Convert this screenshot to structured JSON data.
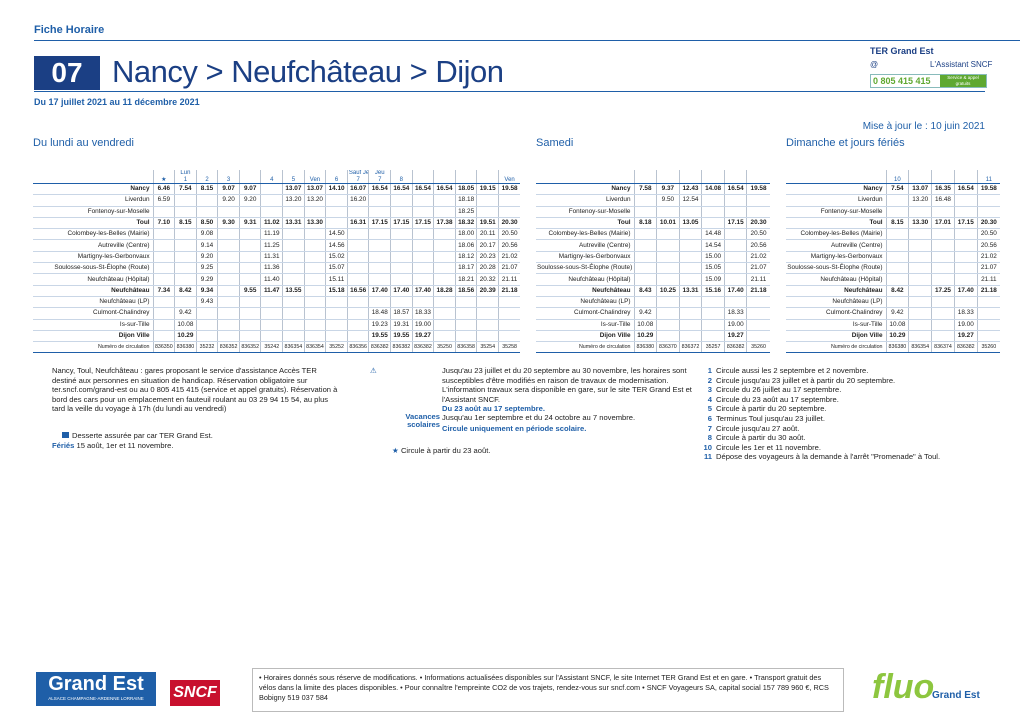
{
  "header": {
    "kicker": "Fiche Horaire",
    "line": "07",
    "title": "Nancy > Neufchâteau > Dijon",
    "validity": "Du 17 juillet 2021 au 11 décembre 2021",
    "brand": "TER Grand Est",
    "at": "@",
    "assistant": "L'Assistant SNCF",
    "phone": "0 805 415 415",
    "phone_note": "Service & appel gratuits",
    "updated": "Mise à jour le : 10 juin 2021"
  },
  "stations": [
    {
      "name": "Nancy",
      "major": true
    },
    {
      "name": "Liverdun",
      "major": false
    },
    {
      "name": "Fontenoy-sur-Moselle",
      "major": false
    },
    {
      "name": "Toul",
      "major": true
    },
    {
      "name": "Colombey-les-Belles (Mairie)",
      "major": false
    },
    {
      "name": "Autreville (Centre)",
      "major": false
    },
    {
      "name": "Martigny-les-Gerbonvaux",
      "major": false
    },
    {
      "name": "Soulosse-sous-St-Élophe (Route)",
      "major": false
    },
    {
      "name": "Neufchâteau (Hôpital)",
      "major": false
    },
    {
      "name": "Neufchâteau",
      "major": true
    },
    {
      "name": "Neufchâteau (LP)",
      "major": false
    },
    {
      "name": "Culmont-Chalindrey",
      "major": false
    },
    {
      "name": "Is-sur-Tille",
      "major": false
    },
    {
      "name": "Dijon Ville",
      "major": true
    }
  ],
  "weekday": {
    "title": "Du lundi au vendredi",
    "days": [
      null,
      "Lun",
      null,
      null,
      null,
      null,
      null,
      "Ven",
      null,
      "Sauf Jeu",
      "Jeu",
      null,
      null,
      null,
      null,
      null,
      "Ven"
    ],
    "refs": [
      "★",
      "1",
      "2",
      "3",
      null,
      "4",
      "5",
      null,
      "6",
      "7",
      "7",
      "8",
      null,
      null,
      null,
      null,
      null
    ],
    "number_label": "Numéro de circulation",
    "trains": [
      "836350",
      "836380",
      "35232",
      "836352",
      "836352",
      "35242",
      "836354",
      "836354",
      "35252",
      "836356",
      "836382",
      "836382",
      "836382",
      "35250",
      "836358",
      "35254",
      "35258"
    ],
    "times": [
      [
        "6.46",
        "7.54",
        "8.15",
        "9.07",
        "9.07",
        null,
        "13.07",
        "13.07",
        "14.10",
        "16.07",
        "16.54",
        "16.54",
        "16.54",
        "16.54",
        "18.05",
        "19.15",
        "19.58"
      ],
      [
        "6.59",
        null,
        null,
        "9.20",
        "9.20",
        null,
        "13.20",
        "13.20",
        null,
        "16.20",
        null,
        null,
        null,
        null,
        "18.18",
        null,
        null
      ],
      [
        null,
        null,
        null,
        null,
        null,
        null,
        null,
        null,
        null,
        null,
        null,
        null,
        null,
        null,
        "18.25",
        null,
        null
      ],
      [
        "7.10",
        "8.15",
        "8.50",
        "9.30",
        "9.31",
        "11.02",
        "13.31",
        "13.30",
        null,
        "16.31",
        "17.15",
        "17.15",
        "17.15",
        "17.38",
        "18.32",
        "19.51",
        "20.30"
      ],
      [
        null,
        null,
        "9.08",
        null,
        null,
        "11.19",
        null,
        null,
        "14.50",
        null,
        null,
        null,
        null,
        null,
        "18.00",
        "20.11",
        "20.50"
      ],
      [
        null,
        null,
        "9.14",
        null,
        null,
        "11.25",
        null,
        null,
        "14.56",
        null,
        null,
        null,
        null,
        null,
        "18.06",
        "20.17",
        "20.56"
      ],
      [
        null,
        null,
        "9.20",
        null,
        null,
        "11.31",
        null,
        null,
        "15.02",
        null,
        null,
        null,
        null,
        null,
        "18.12",
        "20.23",
        "21.02"
      ],
      [
        null,
        null,
        "9.25",
        null,
        null,
        "11.36",
        null,
        null,
        "15.07",
        null,
        null,
        null,
        null,
        null,
        "18.17",
        "20.28",
        "21.07"
      ],
      [
        null,
        null,
        "9.29",
        null,
        null,
        "11.40",
        null,
        null,
        "15.11",
        null,
        null,
        null,
        null,
        null,
        "18.21",
        "20.32",
        "21.11"
      ],
      [
        "7.34",
        "8.42",
        "9.34",
        null,
        "9.55",
        "11.47",
        "13.55",
        null,
        "15.18",
        "16.56",
        "17.40",
        "17.40",
        "17.40",
        "18.28",
        "18.56",
        "20.39",
        "21.18"
      ],
      [
        null,
        null,
        "9.43",
        null,
        null,
        null,
        null,
        null,
        null,
        null,
        null,
        null,
        null,
        null,
        null,
        null,
        null
      ],
      [
        null,
        "9.42",
        null,
        null,
        null,
        null,
        null,
        null,
        null,
        null,
        "18.48",
        "18.57",
        "18.33",
        null,
        null,
        null,
        null
      ],
      [
        null,
        "10.08",
        null,
        null,
        null,
        null,
        null,
        null,
        null,
        null,
        "19.23",
        "19.31",
        "19.00",
        null,
        null,
        null,
        null
      ],
      [
        null,
        "10.29",
        null,
        null,
        null,
        null,
        null,
        null,
        null,
        null,
        "19.55",
        "19.55",
        "19.27",
        null,
        null,
        null,
        null
      ]
    ]
  },
  "saturday": {
    "title": "Samedi",
    "number_label": "Numéro de circulation",
    "trains": [
      "836380",
      "836370",
      "836372",
      "35257",
      "836382",
      "35260"
    ],
    "times": [
      [
        "7.58",
        "9.37",
        "12.43",
        "14.08",
        "16.54",
        "19.58"
      ],
      [
        null,
        "9.50",
        "12.54",
        null,
        null,
        null
      ],
      [
        null,
        null,
        null,
        null,
        null,
        null
      ],
      [
        "8.18",
        "10.01",
        "13.05",
        null,
        "17.15",
        "20.30"
      ],
      [
        null,
        null,
        null,
        "14.48",
        null,
        "20.50"
      ],
      [
        null,
        null,
        null,
        "14.54",
        null,
        "20.56"
      ],
      [
        null,
        null,
        null,
        "15.00",
        null,
        "21.02"
      ],
      [
        null,
        null,
        null,
        "15.05",
        null,
        "21.07"
      ],
      [
        null,
        null,
        null,
        "15.09",
        null,
        "21.11"
      ],
      [
        "8.43",
        "10.25",
        "13.31",
        "15.16",
        "17.40",
        "21.18"
      ],
      [
        null,
        null,
        null,
        null,
        null,
        null
      ],
      [
        "9.42",
        null,
        null,
        null,
        "18.33",
        null
      ],
      [
        "10.08",
        null,
        null,
        null,
        "19.00",
        null
      ],
      [
        "10.29",
        null,
        null,
        null,
        "19.27",
        null
      ]
    ]
  },
  "sunday": {
    "title": "Dimanche et jours fériés",
    "refs": [
      "10",
      null,
      null,
      null,
      "11"
    ],
    "number_label": "Numéro de circulation",
    "trains": [
      "836380",
      "836354",
      "836374",
      "836382",
      "35260"
    ],
    "times": [
      [
        "7.54",
        "13.07",
        "16.35",
        "16.54",
        "19.58"
      ],
      [
        null,
        "13.20",
        "16.48",
        null,
        null
      ],
      [
        null,
        null,
        null,
        null,
        null
      ],
      [
        "8.15",
        "13.30",
        "17.01",
        "17.15",
        "20.30"
      ],
      [
        null,
        null,
        null,
        null,
        "20.50"
      ],
      [
        null,
        null,
        null,
        null,
        "20.56"
      ],
      [
        null,
        null,
        null,
        null,
        "21.02"
      ],
      [
        null,
        null,
        null,
        null,
        "21.07"
      ],
      [
        null,
        null,
        null,
        null,
        "21.11"
      ],
      [
        "8.42",
        null,
        "17.25",
        "17.40",
        "21.18"
      ],
      [
        null,
        null,
        null,
        null,
        null
      ],
      [
        "9.42",
        null,
        null,
        "18.33",
        null
      ],
      [
        "10.08",
        null,
        null,
        "19.00",
        null
      ],
      [
        "10.29",
        null,
        null,
        "19.27",
        null
      ]
    ]
  },
  "notes": {
    "access": "Nancy, Toul, Neufchâteau : gares proposant le service d'assistance Accès TER destiné aux personnes en situation de handicap. Réservation obligatoire sur ter.sncf.com/grand-est ou au 0 805 415 415 (service et appel gratuits). Réservation à bord des cars pour un emplacement en fauteuil roulant au 03 29 94 15 54, au plus tard la veille du voyage à 17h (du lundi au vendredi)",
    "bus": "Desserte assurée par car TER Grand Est.",
    "holidays_label": "Fériés",
    "holidays": "15 août, 1er et 11 novembre.",
    "works": "Jusqu'au 23 juillet et du 20 septembre au 30 novembre, les horaires sont susceptibles d'être modifiés en raison de travaux de modernisation. L'information travaux sera disponible en gare, sur le site TER Grand Est et l'Assistant SNCF.",
    "works_period": "Du 23 août au 17 septembre.",
    "vacation_label": "Vacances scolaires",
    "vacation": "Jusqu'au 1er septembre et du 24 octobre au 7 novembre.",
    "school": "Circule uniquement en période scolaire.",
    "star": "Circule à partir du 23 août.",
    "numbered": [
      {
        "ref": "1",
        "text": "Circule aussi les 2 septembre et 2 novembre."
      },
      {
        "ref": "2",
        "text": "Circule jusqu'au 23 juillet et à partir du 20 septembre."
      },
      {
        "ref": "3",
        "text": "Circule du 26 juillet au 17 septembre."
      },
      {
        "ref": "4",
        "text": "Circule du 23 août au 17 septembre."
      },
      {
        "ref": "5",
        "text": "Circule à partir du 20 septembre."
      },
      {
        "ref": "6",
        "text": "Terminus Toul jusqu'au 23 juillet."
      },
      {
        "ref": "7",
        "text": "Circule jusqu'au 27 août."
      },
      {
        "ref": "8",
        "text": "Circule à partir du 30 août."
      },
      {
        "ref": "10",
        "text": "Circule les 1er et 11 novembre."
      },
      {
        "ref": "11",
        "text": "Dépose des voyageurs à la demande à l'arrêt \"Promenade\" à Toul."
      }
    ]
  },
  "footer": {
    "region": "Grand Est",
    "region_sub": "ALSACE CHAMPAGNE-ARDENNE LORRAINE",
    "sncf": "SNCF",
    "text": "• Horaires donnés sous réserve de modifications. • Informations actualisées disponibles sur l'Assistant SNCF, le site Internet TER Grand Est et en gare. • Transport gratuit des vélos dans la limite des places disponibles. • Pour connaître l'empreinte CO2 de vos trajets, rendez-vous sur sncf.com • SNCF Voyageurs SA, capital social 157 789 960 €, RCS Bobigny 519 037 584",
    "fluo": "fluo",
    "fluo_sub": "Grand Est"
  }
}
